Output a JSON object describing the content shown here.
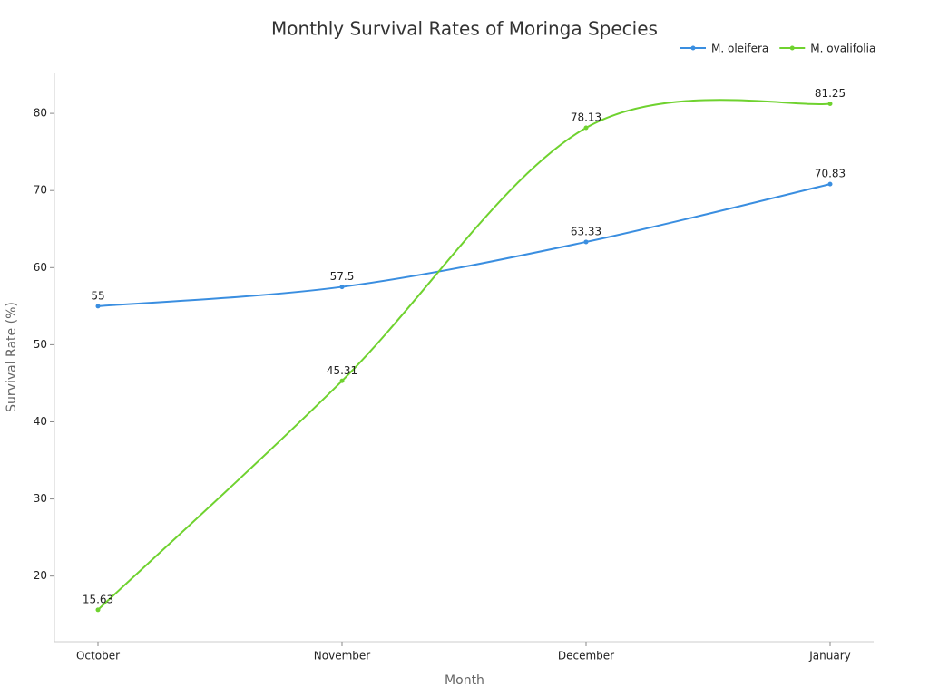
{
  "chart_data": {
    "type": "line",
    "title": "Monthly Survival Rates of Moringa Species",
    "x_label": "Month",
    "y_label": "Survival Rate (%)",
    "categories": [
      "October",
      "November",
      "December",
      "January"
    ],
    "series": [
      {
        "name": "M. oleifera",
        "color": "#3a8ee0",
        "values": [
          55,
          57.5,
          63.33,
          70.83
        ]
      },
      {
        "name": "M. ovalifolia",
        "color": "#6fd22f",
        "values": [
          15.63,
          45.31,
          78.13,
          81.25
        ]
      }
    ],
    "ylim": [
      11.5,
      85.3
    ],
    "yticks": [
      20,
      30,
      40,
      50,
      60,
      70,
      80
    ],
    "grid": false,
    "legend": "top-right"
  }
}
